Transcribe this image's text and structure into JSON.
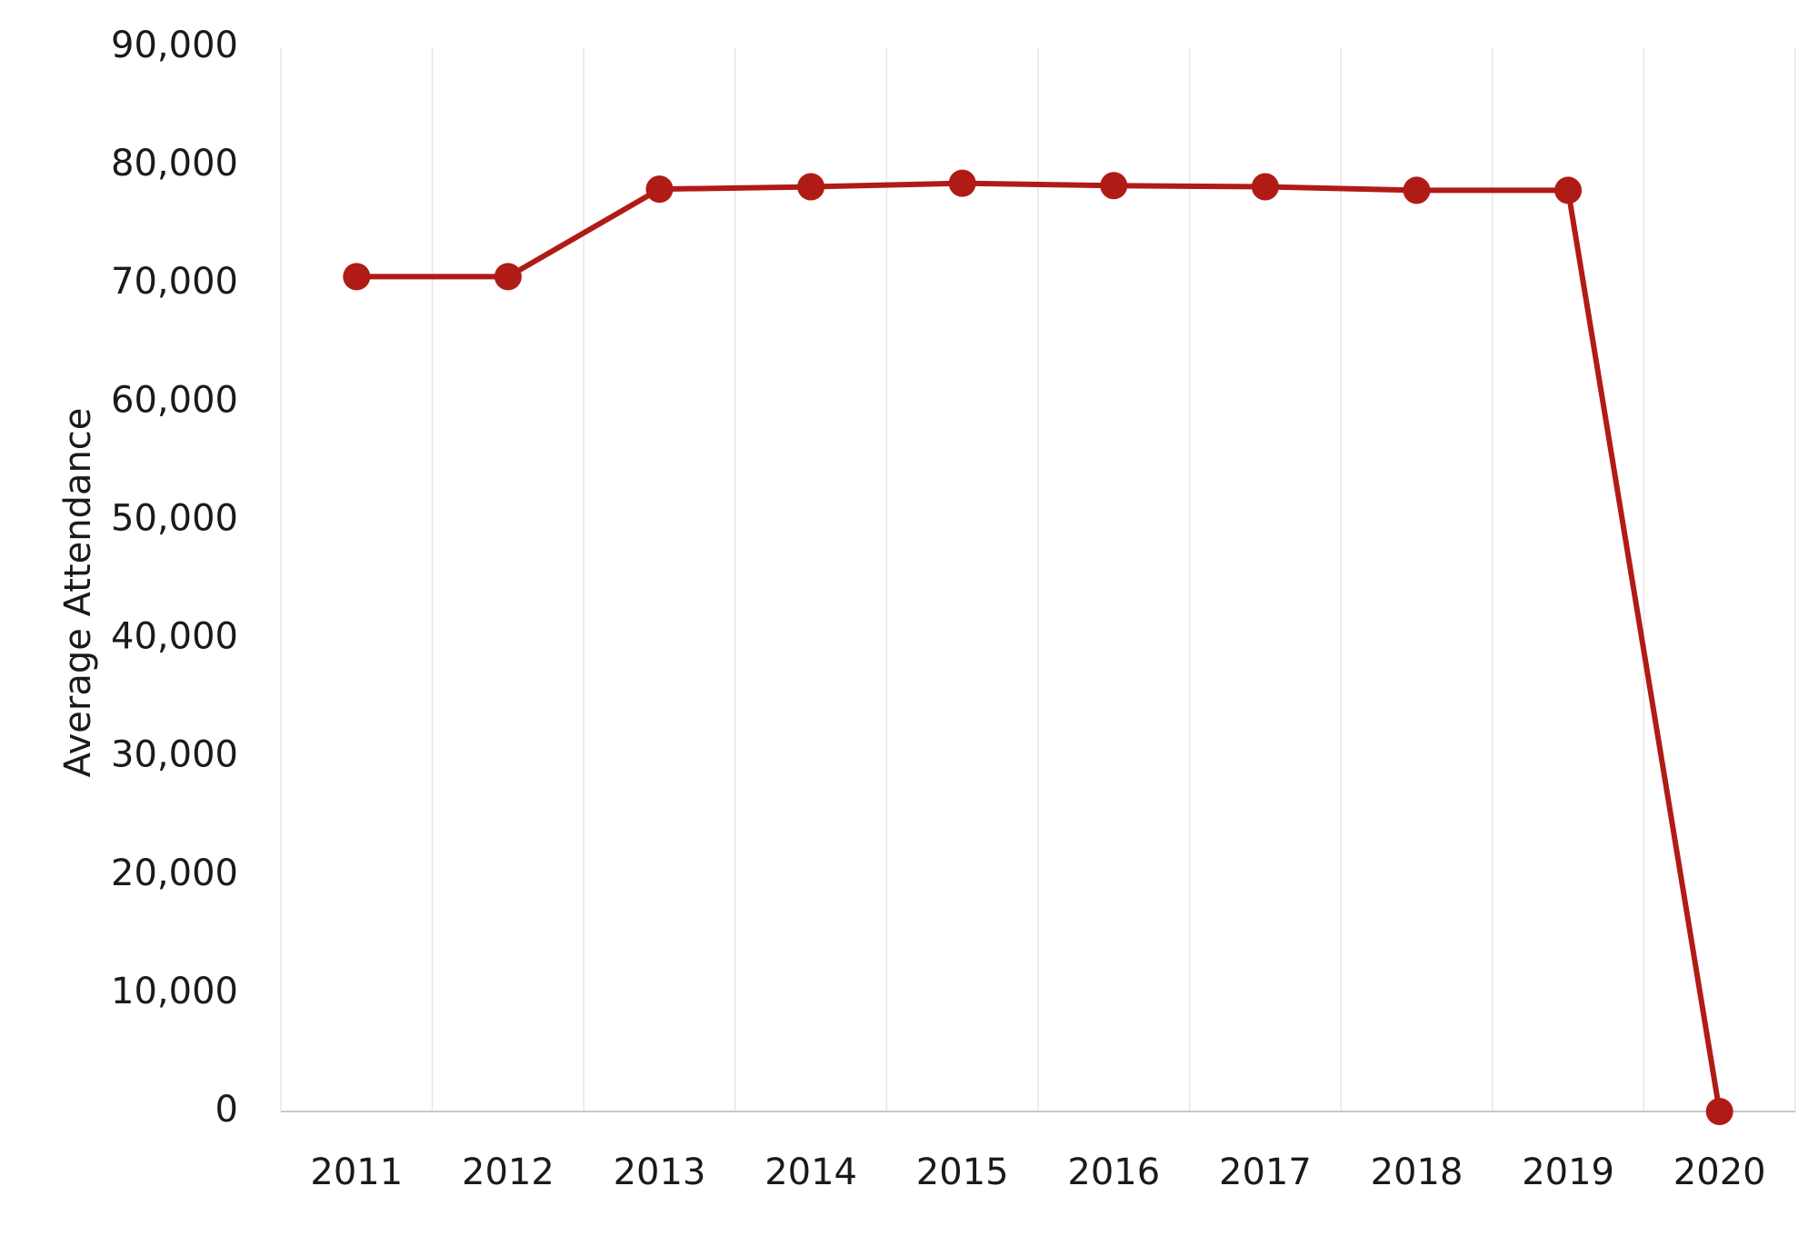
{
  "chart_data": {
    "type": "line",
    "y_label": "Average Attendance",
    "categories": [
      "2011",
      "2012",
      "2013",
      "2014",
      "2015",
      "2016",
      "2017",
      "2018",
      "2019",
      "2020"
    ],
    "series": [
      {
        "name": "Average Attendance",
        "color": "#b11b16",
        "values": [
          70600,
          70600,
          78000,
          78200,
          78500,
          78300,
          78200,
          77900,
          77900,
          0
        ]
      }
    ],
    "ylim": [
      0,
      90000
    ],
    "yticks": [
      0,
      {
        "value": 10000,
        "label": "10,000"
      },
      {
        "value": 20000,
        "label": "20,000"
      },
      {
        "value": 30000,
        "label": "30,000"
      },
      {
        "value": 40000,
        "label": "40,000"
      },
      {
        "value": 50000,
        "label": "50,000"
      },
      {
        "value": 60000,
        "label": "60,000"
      },
      {
        "value": 70000,
        "label": "70,000"
      },
      {
        "value": 80000,
        "label": "80,000"
      },
      {
        "value": 90000,
        "label": "90,000"
      }
    ],
    "grid": "x"
  }
}
